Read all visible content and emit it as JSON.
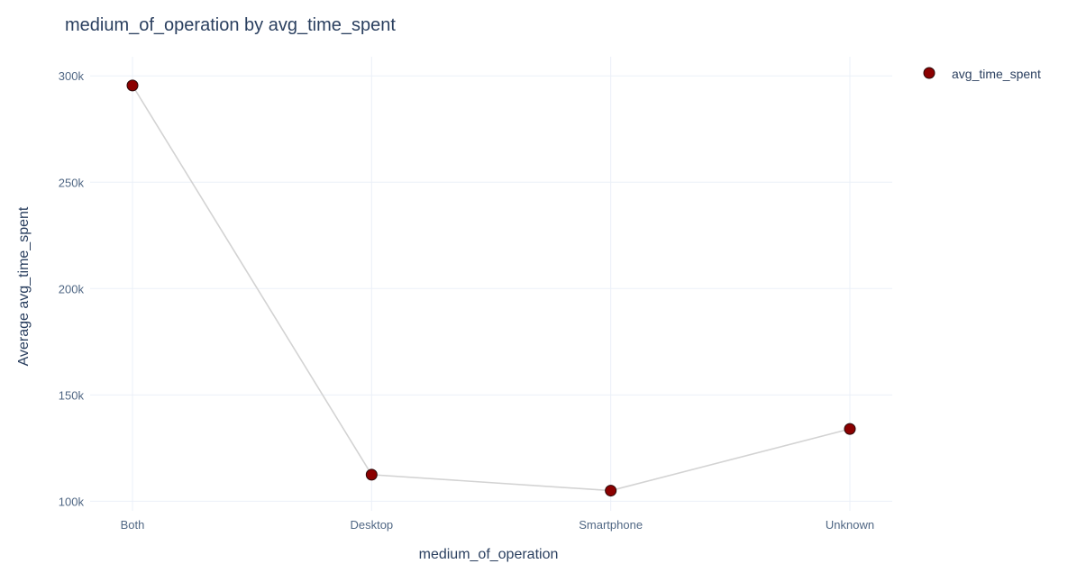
{
  "chart_data": {
    "type": "line",
    "title": "medium_of_operation by avg_time_spent",
    "xlabel": "medium_of_operation",
    "ylabel": "Average avg_time_spent",
    "categories": [
      "Both",
      "Desktop",
      "Smartphone",
      "Unknown"
    ],
    "series": [
      {
        "name": "avg_time_spent",
        "values": [
          295500,
          112500,
          105000,
          134000
        ]
      }
    ],
    "ylim": [
      95500,
      309000
    ],
    "yticks": [
      {
        "value": 100000,
        "label": "100k"
      },
      {
        "value": 150000,
        "label": "150k"
      },
      {
        "value": 200000,
        "label": "200k"
      },
      {
        "value": 250000,
        "label": "250k"
      },
      {
        "value": 300000,
        "label": "300k"
      }
    ],
    "grid": true,
    "legend_position": "top-right",
    "colors": {
      "marker_fill": "#8b0000",
      "marker_stroke": "#2b0a0a",
      "line": "#d3d3d3",
      "grid": "#ebf0f8",
      "text": "#2a3f5f",
      "tick_text": "#506784"
    }
  }
}
